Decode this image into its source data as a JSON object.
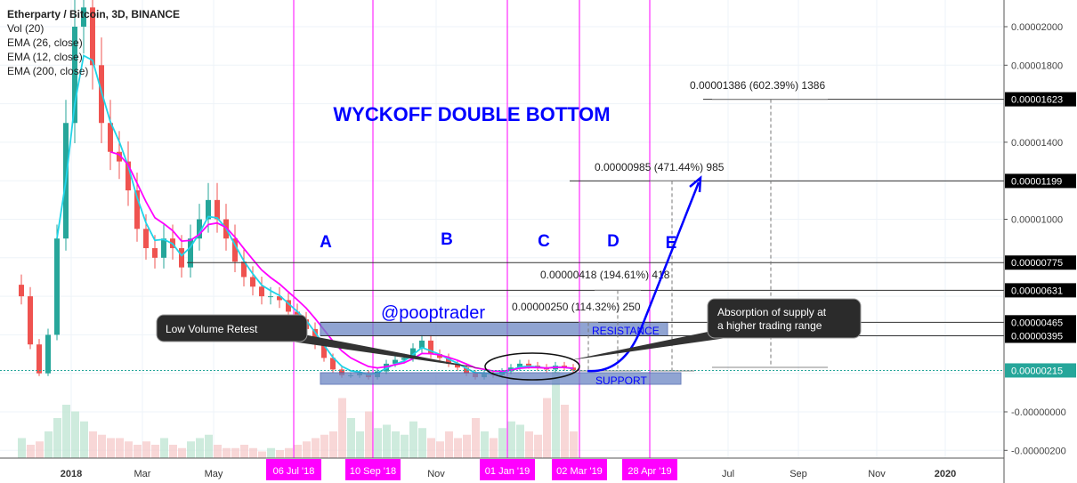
{
  "legend": {
    "title": "Etherparty / Bitcoin, 3D, BINANCE",
    "lines": [
      "Vol (20)",
      "EMA (26, close)",
      "EMA (12, close)",
      "EMA (200, close)"
    ]
  },
  "colors": {
    "up": "#26a69a",
    "down": "#ef5350",
    "ema_fast": "#20d4e8",
    "ema_slow": "#ff00ff",
    "annotation": "#0000ff",
    "marker": "#ff00ff",
    "zone": "#6c86c4"
  },
  "chart_data": {
    "type": "candlestick",
    "title": "WYCKOFF DOUBLE BOTTOM",
    "signature": "@pooptrader",
    "y_axis": {
      "ticks": [
        "0.00002000",
        "0.00001800",
        "0.00001400",
        "0.00001000",
        "-0.00000000",
        "-0.00000200"
      ],
      "tick_values": [
        2000,
        1800,
        1400,
        1000,
        0,
        -200
      ],
      "unit": "1e-8 BTC",
      "range": [
        -300,
        2150
      ]
    },
    "x_axis": {
      "ticks": [
        "2018",
        "Mar",
        "May",
        "Nov",
        "Jul",
        "Sep",
        "Nov",
        "2020"
      ],
      "bold": [
        "2018",
        "2020"
      ]
    },
    "marker_dates": [
      "06 Jul '18",
      "10 Sep '18",
      "01 Jan '19",
      "02 Mar '19",
      "28 Apr '19"
    ],
    "closes": [
      600,
      350,
      200,
      400,
      900,
      1500,
      2000,
      2100,
      1800,
      1500,
      1350,
      1300,
      1150,
      950,
      850,
      800,
      900,
      850,
      750,
      900,
      1000,
      1100,
      1000,
      900,
      780,
      700,
      650,
      600,
      600,
      580,
      520,
      480,
      430,
      350,
      280,
      220,
      190,
      190,
      200,
      180,
      210,
      250,
      270,
      280,
      330,
      370,
      300,
      280,
      250,
      230,
      200,
      180,
      200,
      190,
      210,
      230,
      250,
      240,
      230,
      220,
      240,
      230,
      215
    ],
    "volumes": [
      30,
      20,
      25,
      40,
      60,
      80,
      70,
      55,
      40,
      35,
      30,
      30,
      25,
      20,
      25,
      20,
      30,
      20,
      15,
      25,
      30,
      35,
      20,
      15,
      15,
      20,
      15,
      10,
      15,
      12,
      15,
      20,
      25,
      30,
      35,
      40,
      90,
      60,
      40,
      70,
      45,
      50,
      40,
      35,
      55,
      45,
      30,
      25,
      40,
      30,
      35,
      60,
      40,
      30,
      45,
      55,
      50,
      40,
      35,
      90,
      130,
      80,
      40
    ],
    "levels": [
      {
        "label": "0.00001623",
        "value": 1623
      },
      {
        "label": "0.00001199",
        "value": 1199
      },
      {
        "label": "0.00000775",
        "value": 775
      },
      {
        "label": "0.00000631",
        "value": 631
      },
      {
        "label": "0.00000465",
        "value": 465
      },
      {
        "label": "0.00000395",
        "value": 395
      },
      {
        "label": "0.00000215",
        "value": 215,
        "current": true
      }
    ],
    "measurements": [
      "0.00001386 (602.39%) 1386",
      "0.00000985 (471.44%) 985",
      "0.00000418 (194.61%) 418",
      "0.00000250 (114.32%) 250"
    ],
    "phases": [
      "A",
      "B",
      "C",
      "D",
      "E"
    ],
    "zones": {
      "resistance": "RESISTANCE",
      "support": "SUPPORT"
    },
    "callouts": {
      "left": "Low Volume Retest",
      "right_1": "Absorption of supply at",
      "right_2": "a higher trading range"
    }
  }
}
